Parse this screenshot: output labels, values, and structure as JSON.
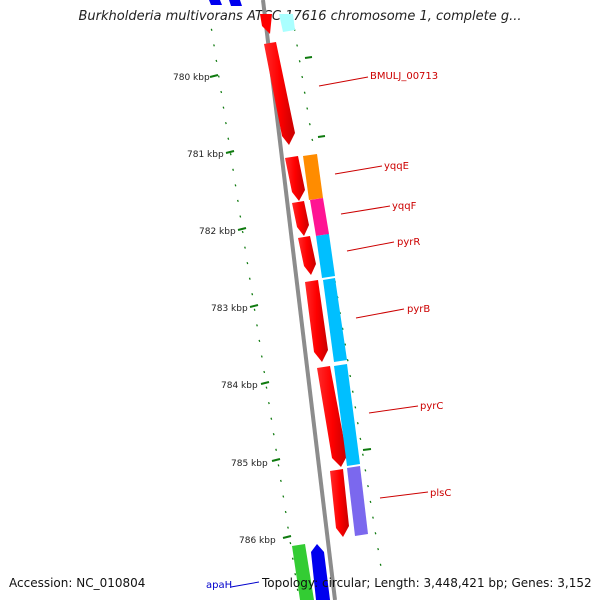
{
  "title": "Burkholderia multivorans ATCC 17616 chromosome 1, complete g...",
  "footer": {
    "accession": "Accession: NC_010804",
    "topology": "Topology: circular; Length: 3,448,421 bp; Genes: 3,152"
  },
  "ruler": {
    "ticks": [
      "780 kbp",
      "781 kbp",
      "782 kbp",
      "783 kbp",
      "784 kbp",
      "785 kbp",
      "786 kbp"
    ]
  },
  "genes": [
    {
      "name": "BMULJ_00713",
      "color": "#cc0000"
    },
    {
      "name": "yqqE",
      "color": "#cc0000"
    },
    {
      "name": "yqqF",
      "color": "#cc0000"
    },
    {
      "name": "pyrR",
      "color": "#cc0000"
    },
    {
      "name": "pyrB",
      "color": "#cc0000"
    },
    {
      "name": "pyrC",
      "color": "#cc0000"
    },
    {
      "name": "plsC",
      "color": "#cc0000"
    },
    {
      "name": "apaH",
      "color": "#0000cc"
    }
  ],
  "colors": {
    "backbone": "#8c8c8c",
    "forward_cds": "#ff0000",
    "tick_green": "#0f7a0f",
    "cog_orange": "#ff8c00",
    "cog_magenta": "#ff1493",
    "cog_cyan": "#00bfff",
    "cog_purple": "#7b68ee",
    "cog_green": "#33cc33",
    "cog_blue": "#0000ee",
    "cog_lightcyan": "#aaffff"
  }
}
